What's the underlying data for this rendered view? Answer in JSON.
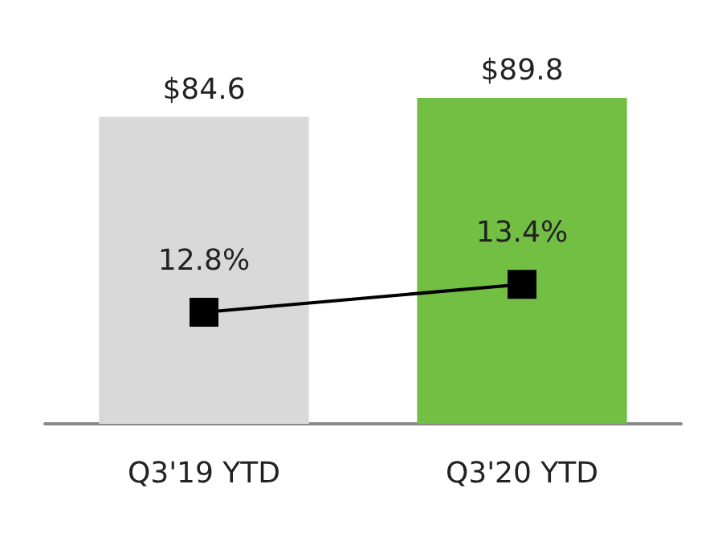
{
  "chart_data": {
    "type": "bar",
    "categories": [
      "Q3'19 YTD",
      "Q3'20 YTD"
    ],
    "series": [
      {
        "colors": [
          "#d9d9d9",
          "#72bf44"
        ],
        "values": [
          84.6,
          89.8
        ],
        "value_labels": [
          "$84.6",
          "$89.8"
        ]
      },
      {
        "type": "line",
        "axis": "y2",
        "color": "#000000",
        "values": [
          12.8,
          13.4
        ],
        "value_labels": [
          "12.8%",
          "13.4%"
        ]
      }
    ],
    "marker": "square"
  }
}
